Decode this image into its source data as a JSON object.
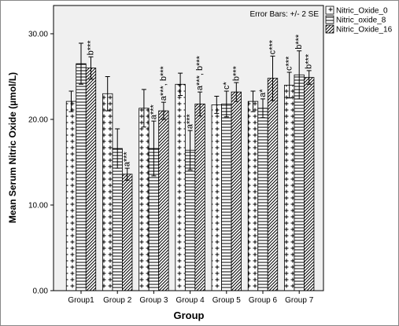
{
  "chart_data": {
    "type": "bar",
    "y_label": "Mean Serum Nitric Oxide (µmol/L)",
    "x_label": "Group",
    "error_note": "Error Bars: +/- 2 SE",
    "categories": [
      "Group1",
      "Group 2",
      "Group 3",
      "Group 4",
      "Group 5",
      "Group 6",
      "Group 7"
    ],
    "series": [
      {
        "name": "Nitric_Oxide_0",
        "color": "#000000",
        "pattern": "plus",
        "values": [
          22.1,
          23.0,
          21.3,
          24.1,
          21.7,
          22.1,
          24.0
        ],
        "errors": [
          1.2,
          2.0,
          2.2,
          1.3,
          1.0,
          1.2,
          1.5
        ],
        "annotations": [
          null,
          null,
          null,
          null,
          null,
          null,
          "c***"
        ]
      },
      {
        "name": "Nitric_oxide_8",
        "color": "#000000",
        "pattern": "horizontal",
        "values": [
          26.5,
          16.6,
          16.6,
          16.4,
          21.8,
          21.3,
          25.2
        ],
        "errors": [
          2.4,
          2.3,
          3.2,
          2.3,
          1.5,
          1.1,
          2.8
        ],
        "annotations": [
          null,
          null,
          "a***",
          "a***",
          "c*",
          "a*",
          "b***"
        ]
      },
      {
        "name": "Nitric_Oxide_16",
        "color": "#000000",
        "pattern": "diagonal",
        "values": [
          26.0,
          13.6,
          21.0,
          21.8,
          23.2,
          24.8,
          24.9
        ],
        "errors": [
          1.3,
          0.7,
          1.0,
          1.4,
          1.1,
          2.6,
          0.8
        ],
        "annotations": [
          "b***",
          "a***",
          "a***, b***",
          "a***, b***",
          "b***",
          "c***",
          "b***"
        ]
      }
    ],
    "ylim": [
      0,
      33.3
    ],
    "yticks": [
      {
        "value": 0,
        "label": "0.00"
      },
      {
        "value": 10,
        "label": "10.00"
      },
      {
        "value": 20,
        "label": "20.00"
      },
      {
        "value": 30,
        "label": "30.00"
      }
    ],
    "legend": "top-right-outside"
  }
}
